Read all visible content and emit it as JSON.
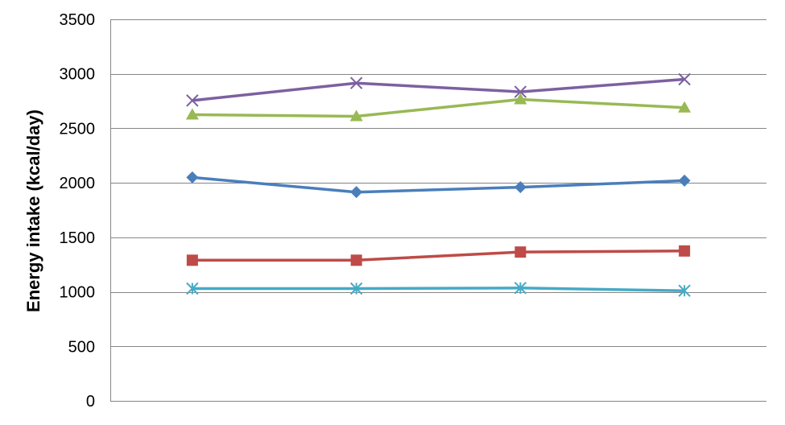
{
  "chart_data": {
    "type": "line",
    "title": "",
    "xlabel": "",
    "ylabel": "Energy intake (kcal/day)",
    "ylim": [
      0,
      3500
    ],
    "yticks": [
      0,
      500,
      1000,
      1500,
      2000,
      2500,
      3000,
      3500
    ],
    "y_tick_labels": [
      "0",
      "500",
      "1000",
      "1500",
      "2000",
      "2500",
      "3000",
      "3500"
    ],
    "x_positions": [
      1,
      2,
      3,
      4
    ],
    "grid": true,
    "legend": "none",
    "series": [
      {
        "color": "#4a7ebb",
        "marker": "diamond",
        "values": [
          2050,
          1915,
          1960,
          2020
        ]
      },
      {
        "color": "#be4b48",
        "marker": "square",
        "values": [
          1290,
          1290,
          1365,
          1375
        ]
      },
      {
        "color": "#98b954",
        "marker": "triangle",
        "values": [
          2625,
          2610,
          2765,
          2690
        ]
      },
      {
        "color": "#7d60a0",
        "marker": "x",
        "values": [
          2755,
          2915,
          2835,
          2950
        ]
      },
      {
        "color": "#46aac5",
        "marker": "star",
        "values": [
          1030,
          1030,
          1035,
          1010
        ]
      }
    ]
  }
}
